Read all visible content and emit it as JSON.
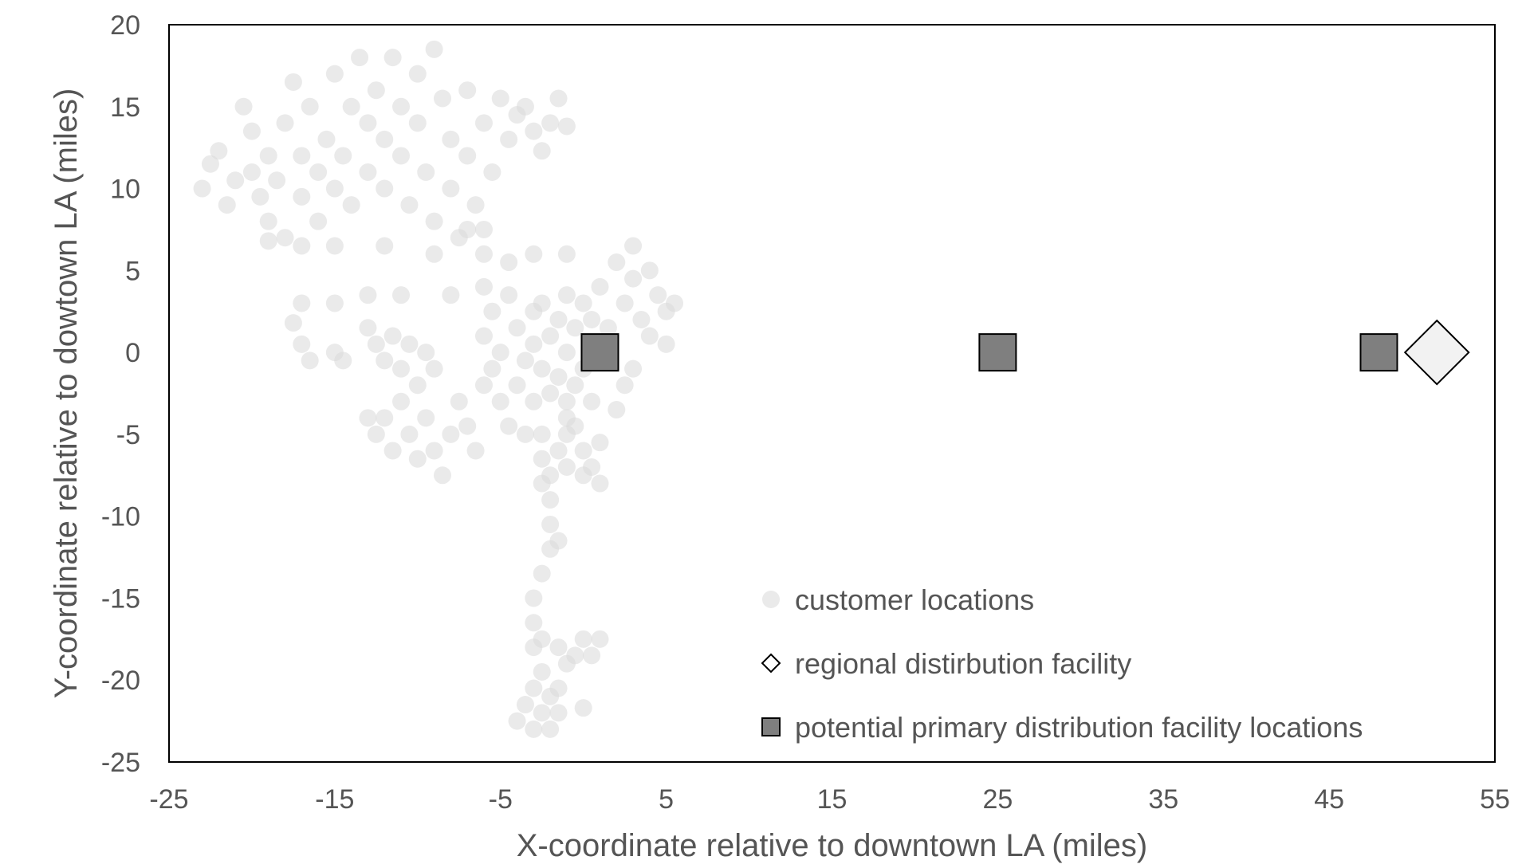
{
  "chart_data": {
    "type": "scatter",
    "title": "",
    "xlabel": "X-coordinate relative to downtown LA (miles)",
    "ylabel": "Y-coordinate relative to dowtown LA (miles)",
    "xlim": [
      -25,
      55
    ],
    "ylim": [
      -25,
      20
    ],
    "x_ticks": [
      "-25",
      "-15",
      "-5",
      "5",
      "15",
      "25",
      "35",
      "45",
      "55"
    ],
    "y_ticks": [
      "20",
      "15",
      "10",
      "5",
      "0",
      "-5",
      "-10",
      "-15",
      "-20",
      "-25"
    ],
    "grid": false,
    "legend_position": "bottom-center",
    "colors": {
      "customer": "#d9d9d9",
      "regional_fill": "#f2f2f2",
      "primary_fill": "#7f7f7f",
      "stroke": "#000000",
      "text": "#555555"
    },
    "series": [
      {
        "name": "customer locations",
        "marker": "circle",
        "points": [
          [
            -23,
            10
          ],
          [
            -22.5,
            11.5
          ],
          [
            -22,
            12.3
          ],
          [
            -21.5,
            9
          ],
          [
            -21,
            10.5
          ],
          [
            -20.5,
            15
          ],
          [
            -20,
            13.5
          ],
          [
            -20,
            11
          ],
          [
            -19.5,
            9.5
          ],
          [
            -19,
            12
          ],
          [
            -19,
            8
          ],
          [
            -18.5,
            10.5
          ],
          [
            -18,
            14
          ],
          [
            -18,
            7
          ],
          [
            -17.5,
            16.5
          ],
          [
            -17,
            12
          ],
          [
            -17,
            9.5
          ],
          [
            -16.5,
            15
          ],
          [
            -16,
            11
          ],
          [
            -16,
            8
          ],
          [
            -15.5,
            13
          ],
          [
            -15,
            10
          ],
          [
            -15,
            17
          ],
          [
            -14.5,
            12
          ],
          [
            -14,
            15
          ],
          [
            -14,
            9
          ],
          [
            -13.5,
            18
          ],
          [
            -13,
            14
          ],
          [
            -13,
            11
          ],
          [
            -12.5,
            16
          ],
          [
            -12,
            13
          ],
          [
            -12,
            10
          ],
          [
            -11.5,
            18
          ],
          [
            -11,
            15
          ],
          [
            -11,
            12
          ],
          [
            -10.5,
            9
          ],
          [
            -10,
            17
          ],
          [
            -10,
            14
          ],
          [
            -9.5,
            11
          ],
          [
            -9,
            8
          ],
          [
            -9,
            18.5
          ],
          [
            -8.5,
            15.5
          ],
          [
            -8,
            13
          ],
          [
            -8,
            10
          ],
          [
            -7.5,
            7
          ],
          [
            -7,
            16
          ],
          [
            -7,
            12
          ],
          [
            -6.5,
            9
          ],
          [
            -6,
            14
          ],
          [
            -6,
            7.5
          ],
          [
            -5.5,
            11
          ],
          [
            -5,
            15.5
          ],
          [
            -4.5,
            13
          ],
          [
            -4,
            14.5
          ],
          [
            -3.5,
            15
          ],
          [
            -3,
            13.5
          ],
          [
            -2.5,
            12.3
          ],
          [
            -2,
            14
          ],
          [
            -1.5,
            15.5
          ],
          [
            -1,
            13.8
          ],
          [
            -19,
            6.8
          ],
          [
            -17,
            6.5
          ],
          [
            -15,
            6.5
          ],
          [
            -12,
            6.5
          ],
          [
            -9,
            6
          ],
          [
            -7,
            7.5
          ],
          [
            -6,
            6
          ],
          [
            -4.5,
            5.5
          ],
          [
            -3,
            6
          ],
          [
            -1,
            6
          ],
          [
            -17,
            3
          ],
          [
            -15,
            3
          ],
          [
            -13,
            3.5
          ],
          [
            -11,
            3.5
          ],
          [
            -8,
            3.5
          ],
          [
            -6,
            4
          ],
          [
            -17.5,
            1.8
          ],
          [
            -17,
            0.5
          ],
          [
            -16.5,
            -0.5
          ],
          [
            -15,
            0
          ],
          [
            -14.5,
            -0.5
          ],
          [
            -13,
            1.5
          ],
          [
            -12.5,
            0.5
          ],
          [
            -12,
            -0.5
          ],
          [
            -11.5,
            1
          ],
          [
            -11,
            -1
          ],
          [
            -10.5,
            0.5
          ],
          [
            -10,
            -2
          ],
          [
            -9.5,
            0
          ],
          [
            -9,
            -1
          ],
          [
            -13,
            -4
          ],
          [
            -12.5,
            -5
          ],
          [
            -12,
            -4
          ],
          [
            -11.5,
            -6
          ],
          [
            -11,
            -3
          ],
          [
            -10.5,
            -5
          ],
          [
            -10,
            -6.5
          ],
          [
            -9.5,
            -4
          ],
          [
            -9,
            -6
          ],
          [
            -8.5,
            -7.5
          ],
          [
            -8,
            -5
          ],
          [
            -7.5,
            -3
          ],
          [
            -7,
            -4.5
          ],
          [
            -6.5,
            -6
          ],
          [
            -6,
            -2
          ],
          [
            -5.5,
            -1
          ],
          [
            -5,
            -3
          ],
          [
            -4.5,
            -4.5
          ],
          [
            -4,
            -2
          ],
          [
            -3.5,
            -5
          ],
          [
            -6,
            1
          ],
          [
            -5.5,
            2.5
          ],
          [
            -5,
            0
          ],
          [
            -4.5,
            3.5
          ],
          [
            -4,
            1.5
          ],
          [
            -3.5,
            -0.5
          ],
          [
            -3,
            2.5
          ],
          [
            -3,
            0.5
          ],
          [
            -2.5,
            3
          ],
          [
            -2.5,
            -1
          ],
          [
            -2,
            1
          ],
          [
            -2,
            -2.5
          ],
          [
            -1.5,
            2
          ],
          [
            -1.5,
            -1.5
          ],
          [
            -1,
            3.5
          ],
          [
            -1,
            0
          ],
          [
            -1,
            -3
          ],
          [
            -0.5,
            1.5
          ],
          [
            -0.5,
            -2
          ],
          [
            0,
            3
          ],
          [
            0,
            -1
          ],
          [
            0.5,
            2
          ],
          [
            0.5,
            -3
          ],
          [
            1,
            4
          ],
          [
            1.5,
            1.5
          ],
          [
            2,
            5.5
          ],
          [
            2.5,
            3
          ],
          [
            3,
            4.5
          ],
          [
            3,
            6.5
          ],
          [
            3.5,
            2
          ],
          [
            4,
            5
          ],
          [
            4,
            1
          ],
          [
            4.5,
            3.5
          ],
          [
            5,
            2.5
          ],
          [
            5,
            0.5
          ],
          [
            5.5,
            3
          ],
          [
            3,
            -1
          ],
          [
            2.5,
            -2
          ],
          [
            2,
            -3.5
          ],
          [
            -1,
            -4
          ],
          [
            -3,
            -3
          ],
          [
            -2.5,
            -5
          ],
          [
            -2.5,
            -6.5
          ],
          [
            -2.5,
            -8
          ],
          [
            -2,
            -7.5
          ],
          [
            -2,
            -9
          ],
          [
            -1.5,
            -6
          ],
          [
            -1,
            -5
          ],
          [
            -1,
            -7
          ],
          [
            -0.5,
            -4.5
          ],
          [
            0,
            -6
          ],
          [
            0,
            -7.5
          ],
          [
            0.5,
            -7
          ],
          [
            1,
            -5.5
          ],
          [
            1,
            -8
          ],
          [
            -2,
            -10.5
          ],
          [
            -2,
            -12
          ],
          [
            -1.5,
            -11.5
          ],
          [
            -2.5,
            -13.5
          ],
          [
            -3,
            -15
          ],
          [
            -3,
            -16.5
          ],
          [
            -3,
            -18
          ],
          [
            -2.5,
            -17.5
          ],
          [
            -1.5,
            -18
          ],
          [
            -1,
            -19
          ],
          [
            -0.5,
            -18.5
          ],
          [
            0,
            -17.5
          ],
          [
            0.5,
            -18.5
          ],
          [
            1,
            -17.5
          ],
          [
            -2.5,
            -19.5
          ],
          [
            -3,
            -20.5
          ],
          [
            -3.5,
            -21.5
          ],
          [
            -2.5,
            -22
          ],
          [
            -2,
            -21
          ],
          [
            -1.5,
            -22
          ],
          [
            -3,
            -23
          ],
          [
            -2,
            -23
          ],
          [
            -4,
            -22.5
          ],
          [
            -1.5,
            -20.5
          ],
          [
            0,
            -21.7
          ]
        ]
      },
      {
        "name": "regional distirbution facility",
        "marker": "diamond",
        "points": [
          [
            51.5,
            0
          ]
        ]
      },
      {
        "name": "potential primary distribution facility locations",
        "marker": "square",
        "points": [
          [
            1,
            0
          ],
          [
            25,
            0
          ],
          [
            48,
            0
          ]
        ]
      }
    ]
  }
}
